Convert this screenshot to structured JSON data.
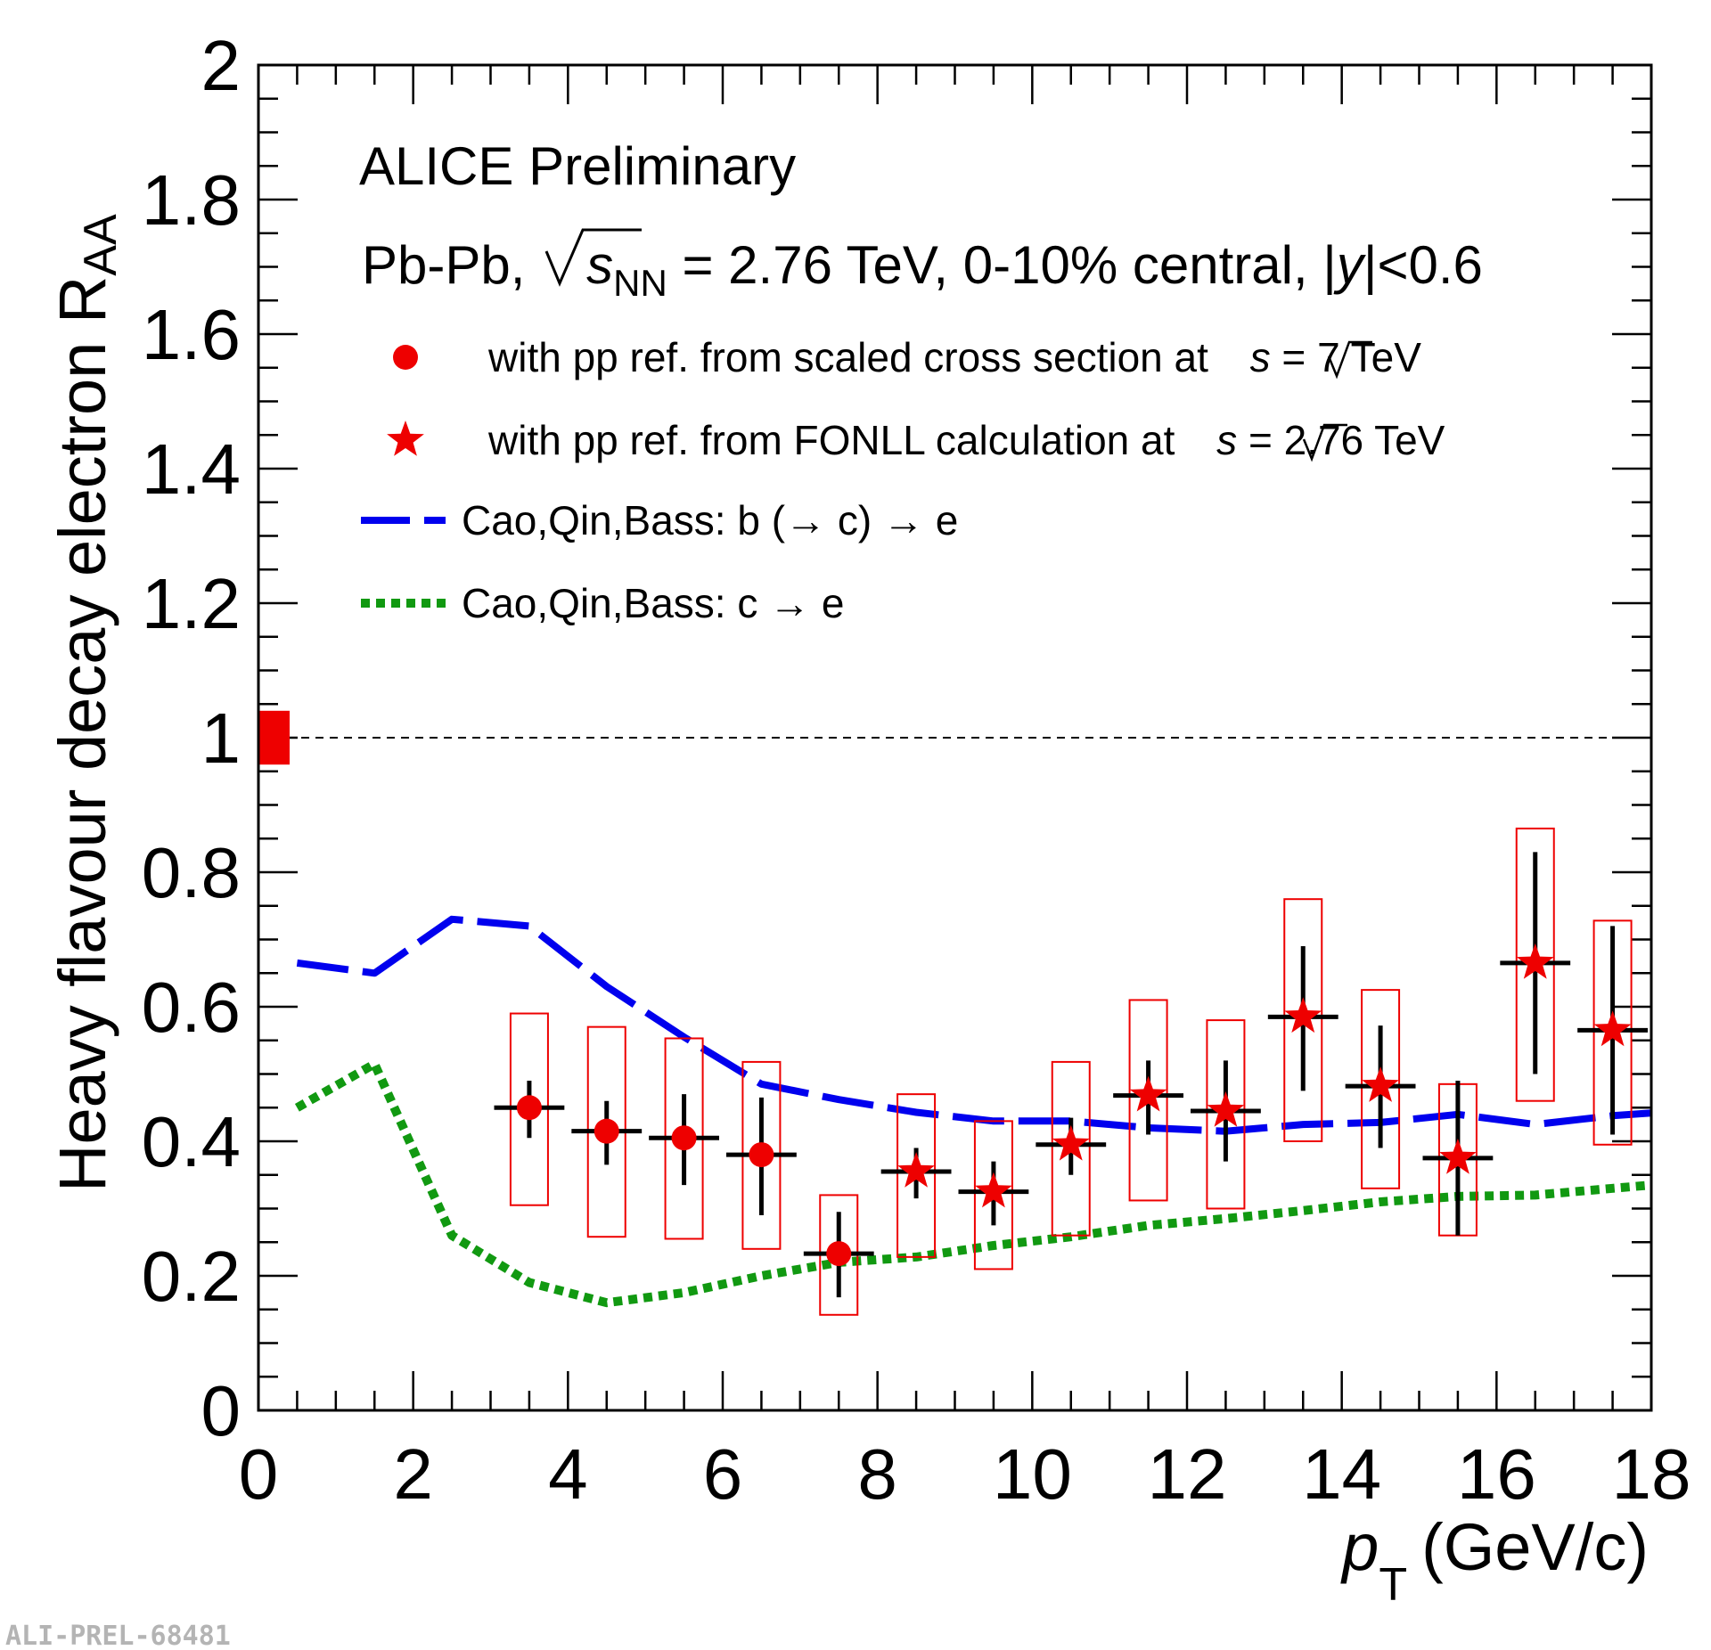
{
  "chart_data": {
    "type": "scatter",
    "ylabel": "Heavy flavour decay electron R",
    "ylabel_sub": "AA",
    "xlabel": "p",
    "xlabel_sub": "T",
    "xlabel_units": "(GeV/c)",
    "xlim": [
      0,
      18
    ],
    "ylim": [
      0,
      2
    ],
    "xticks": [
      "0",
      "2",
      "4",
      "6",
      "8",
      "10",
      "12",
      "14",
      "16",
      "18"
    ],
    "yticks": [
      "0",
      "0.2",
      "0.4",
      "0.6",
      "0.8",
      "1",
      "1.2",
      "1.4",
      "1.6",
      "1.8",
      "2"
    ],
    "reference_line_y": 1,
    "normalization_uncertainty": {
      "low": 0.96,
      "high": 1.04
    },
    "title_lines": {
      "experiment": "ALICE Preliminary",
      "system_prefix": "Pb-Pb, ",
      "sqrt_s": "s",
      "sqrt_s_sub": "NN",
      "system_rest": " = 2.76 TeV, 0-10% central, |",
      "y_symbol": "y",
      "system_end": "|<0.6"
    },
    "legend": {
      "circle_text": "with pp ref. from scaled cross section at ",
      "circle_energy": " = 7 TeV",
      "star_text": "with pp ref. from FONLL calculation at ",
      "star_energy": " = 2.76 TeV",
      "sqrt_symbol": "s",
      "blue_label": "Cao,Qin,Bass: b (→ c) → e",
      "green_label": "Cao,Qin,Bass: c → e"
    },
    "colors": {
      "points": "#ee0000",
      "errors": "#000000",
      "blue_curve": "#0000ee",
      "green_curve": "#119911",
      "sys_box": "#ee0000"
    },
    "series": [
      {
        "name": "with pp ref. from scaled cross section at √s = 7 TeV",
        "marker": "circle",
        "points": [
          {
            "x": 3.5,
            "xlo": 3,
            "xhi": 4,
            "y": 0.45,
            "stat": [
              0.405,
              0.49
            ],
            "sys": [
              0.305,
              0.59
            ]
          },
          {
            "x": 4.5,
            "xlo": 4,
            "xhi": 5,
            "y": 0.415,
            "stat": [
              0.365,
              0.46
            ],
            "sys": [
              0.258,
              0.57
            ]
          },
          {
            "x": 5.5,
            "xlo": 5,
            "xhi": 6,
            "y": 0.405,
            "stat": [
              0.335,
              0.47
            ],
            "sys": [
              0.255,
              0.553
            ]
          },
          {
            "x": 6.5,
            "xlo": 6,
            "xhi": 7,
            "y": 0.38,
            "stat": [
              0.29,
              0.465
            ],
            "sys": [
              0.24,
              0.518
            ]
          },
          {
            "x": 7.5,
            "xlo": 7,
            "xhi": 8,
            "y": 0.233,
            "stat": [
              0.168,
              0.295
            ],
            "sys": [
              0.142,
              0.32
            ]
          }
        ]
      },
      {
        "name": "with pp ref. from FONLL calculation at √s = 2.76 TeV",
        "marker": "star",
        "points": [
          {
            "x": 8.5,
            "xlo": 8,
            "xhi": 9,
            "y": 0.355,
            "stat": [
              0.315,
              0.39
            ],
            "sys": [
              0.228,
              0.47
            ]
          },
          {
            "x": 9.5,
            "xlo": 9,
            "xhi": 10,
            "y": 0.325,
            "stat": [
              0.275,
              0.37
            ],
            "sys": [
              0.21,
              0.43
            ]
          },
          {
            "x": 10.5,
            "xlo": 10,
            "xhi": 11,
            "y": 0.395,
            "stat": [
              0.35,
              0.435
            ],
            "sys": [
              0.26,
              0.518
            ]
          },
          {
            "x": 11.5,
            "xlo": 11,
            "xhi": 12,
            "y": 0.468,
            "stat": [
              0.41,
              0.52
            ],
            "sys": [
              0.312,
              0.61
            ]
          },
          {
            "x": 12.5,
            "xlo": 12,
            "xhi": 13,
            "y": 0.445,
            "stat": [
              0.37,
              0.52
            ],
            "sys": [
              0.3,
              0.58
            ]
          },
          {
            "x": 13.5,
            "xlo": 13,
            "xhi": 14,
            "y": 0.585,
            "stat": [
              0.475,
              0.69
            ],
            "sys": [
              0.4,
              0.76
            ]
          },
          {
            "x": 14.5,
            "xlo": 14,
            "xhi": 15,
            "y": 0.482,
            "stat": [
              0.39,
              0.572
            ],
            "sys": [
              0.33,
              0.625
            ]
          },
          {
            "x": 15.5,
            "xlo": 15,
            "xhi": 16,
            "y": 0.375,
            "stat": [
              0.26,
              0.49
            ],
            "sys": [
              0.26,
              0.485
            ]
          },
          {
            "x": 16.5,
            "xlo": 16,
            "xhi": 17,
            "y": 0.665,
            "stat": [
              0.5,
              0.83
            ],
            "sys": [
              0.46,
              0.865
            ]
          },
          {
            "x": 17.5,
            "xlo": 17,
            "xhi": 18,
            "y": 0.565,
            "stat": [
              0.41,
              0.72
            ],
            "sys": [
              0.395,
              0.728
            ]
          }
        ]
      }
    ],
    "curves": [
      {
        "name": "Cao,Qin,Bass: b (→ c) → e",
        "style": "long-dash",
        "color": "#0000ee",
        "x": [
          0.5,
          1.5,
          2.5,
          3.5,
          4.5,
          5.5,
          6.5,
          7.5,
          8.5,
          9.5,
          10.5,
          11.5,
          12.5,
          13.5,
          14.5,
          15.5,
          16.5,
          17.5,
          18
        ],
        "y": [
          0.665,
          0.65,
          0.73,
          0.72,
          0.63,
          0.555,
          0.485,
          0.462,
          0.443,
          0.43,
          0.43,
          0.42,
          0.415,
          0.425,
          0.428,
          0.44,
          0.425,
          0.438,
          0.442
        ]
      },
      {
        "name": "Cao,Qin,Bass: c → e",
        "style": "dotted",
        "color": "#119911",
        "x": [
          0.5,
          1.5,
          2.5,
          3.5,
          4.5,
          5.5,
          6.5,
          7.5,
          8.5,
          9.5,
          10.5,
          11.5,
          12.5,
          13.5,
          14.5,
          15.5,
          16.5,
          17.5,
          18
        ],
        "y": [
          0.45,
          0.515,
          0.26,
          0.19,
          0.16,
          0.175,
          0.2,
          0.22,
          0.228,
          0.245,
          0.258,
          0.275,
          0.285,
          0.297,
          0.31,
          0.318,
          0.32,
          0.33,
          0.335
        ]
      }
    ]
  },
  "watermark": "ALI-PREL-68481"
}
